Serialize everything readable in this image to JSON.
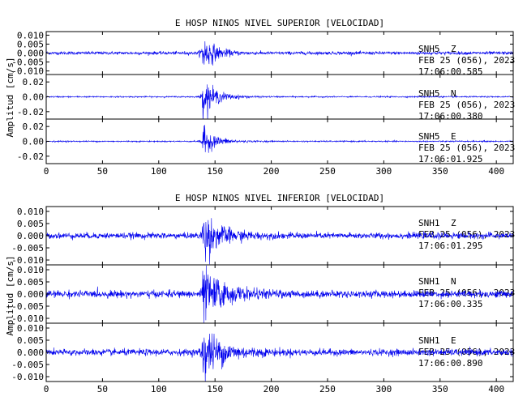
{
  "colors": {
    "trace": "#0000ee",
    "axis": "#000000",
    "background": "#ffffff"
  },
  "chart_data": [
    {
      "type": "line",
      "title": "E HOSP NINOS NIVEL SUPERIOR [VELOCIDAD]",
      "ylabel": "Amplitud [cm/s]",
      "xlim": [
        0,
        415
      ],
      "xticks": [
        0,
        50,
        100,
        150,
        200,
        250,
        300,
        350,
        400
      ],
      "xticklabels": [
        "0",
        "50",
        "100",
        "150",
        "200",
        "250",
        "300",
        "350",
        "400"
      ],
      "panels": [
        {
          "station": "SNH5",
          "component": "Z",
          "date": "FEB 25 (056), 2023",
          "time": "17:06:00.585",
          "ylim": [
            -0.012,
            0.012
          ],
          "yticks": [
            -0.01,
            -0.005,
            0,
            0.005,
            0.01
          ],
          "yticklabels": [
            "-0.010",
            "-0.005",
            "0.000",
            "0.005",
            "0.010"
          ],
          "noise": 0.0008,
          "peak": 0.011,
          "arrival": 138,
          "decay": 10
        },
        {
          "station": "SNH5",
          "component": "N",
          "date": "FEB 25 (056), 2023",
          "time": "17:06:00.380",
          "ylim": [
            -0.03,
            0.03
          ],
          "yticks": [
            -0.02,
            0,
            0.02
          ],
          "yticklabels": [
            "-0.02",
            "0.00",
            "0.02"
          ],
          "noise": 0.0008,
          "peak": 0.024,
          "arrival": 138,
          "decay": 12
        },
        {
          "station": "SNH5",
          "component": "E",
          "date": "FEB 25 (056), 2023",
          "time": "17:06:01.925",
          "ylim": [
            -0.03,
            0.03
          ],
          "yticks": [
            -0.02,
            0,
            0.02
          ],
          "yticklabels": [
            "-0.02",
            "0.00",
            "0.02"
          ],
          "noise": 0.0008,
          "peak": 0.02,
          "arrival": 138,
          "decay": 11
        }
      ]
    },
    {
      "type": "line",
      "title": "E HOSP NINOS NIVEL INFERIOR [VELOCIDAD]",
      "ylabel": "Amplitud [cm/s]",
      "xlim": [
        0,
        415
      ],
      "xticks": [
        0,
        50,
        100,
        150,
        200,
        250,
        300,
        350,
        400
      ],
      "xticklabels": [
        "0",
        "50",
        "100",
        "150",
        "200",
        "250",
        "300",
        "350",
        "400"
      ],
      "panels": [
        {
          "station": "SNH1",
          "component": "Z",
          "date": "FEB 25 (056), 2023",
          "time": "17:06:01.295",
          "ylim": [
            -0.012,
            0.012
          ],
          "yticks": [
            -0.01,
            -0.005,
            0,
            0.005,
            0.01
          ],
          "yticklabels": [
            "-0.010",
            "-0.005",
            "0.000",
            "0.005",
            "0.010"
          ],
          "noise": 0.0011,
          "peak": 0.009,
          "arrival": 138,
          "decay": 16
        },
        {
          "station": "SNH1",
          "component": "N",
          "date": "FEB 25 (056), 2023",
          "time": "17:06:00.335",
          "ylim": [
            -0.012,
            0.012
          ],
          "yticks": [
            -0.01,
            -0.005,
            0,
            0.005,
            0.01
          ],
          "yticklabels": [
            "-0.010",
            "-0.005",
            "0.000",
            "0.005",
            "0.010"
          ],
          "noise": 0.0013,
          "peak": 0.01,
          "arrival": 138,
          "decay": 18
        },
        {
          "station": "SNH1",
          "component": "E",
          "date": "FEB 25 (056), 2023",
          "time": "17:06:00.890",
          "ylim": [
            -0.012,
            0.012
          ],
          "yticks": [
            -0.01,
            -0.005,
            0,
            0.005,
            0.01
          ],
          "yticklabels": [
            "-0.010",
            "-0.005",
            "0.000",
            "0.005",
            "0.010"
          ],
          "noise": 0.0012,
          "peak": 0.01,
          "arrival": 138,
          "decay": 18
        }
      ]
    }
  ]
}
